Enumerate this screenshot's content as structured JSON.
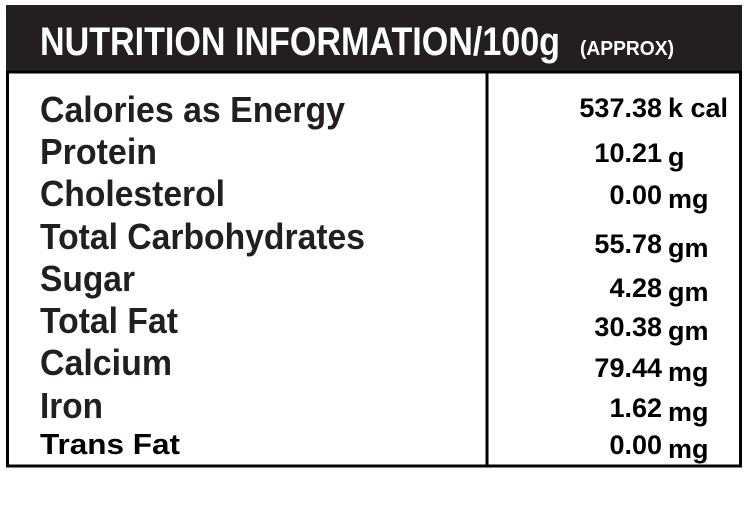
{
  "header": {
    "title": "NUTRITION INFORMATION/100g",
    "note": "(APPROX)"
  },
  "table": {
    "rows": [
      [
        "Calories as Energy",
        "537.38",
        "k cal"
      ],
      [
        "Protein",
        "10.21",
        "g"
      ],
      [
        "Cholesterol",
        "0.00",
        "mg"
      ],
      [
        "Total Carbohydrates",
        "55.78",
        "gm"
      ],
      [
        "Sugar",
        "4.28",
        "gm"
      ],
      [
        "Total Fat",
        "30.38",
        "gm"
      ],
      [
        "Calcium",
        "79.44",
        "mg"
      ],
      [
        "Iron",
        "1.62",
        "mg"
      ],
      [
        "Trans Fat",
        "0.00",
        "mg"
      ]
    ]
  }
}
